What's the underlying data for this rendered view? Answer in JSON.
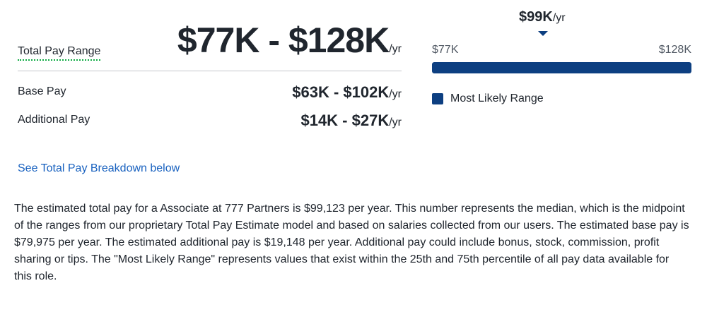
{
  "total_pay": {
    "label": "Total Pay Range",
    "value": "$77K - $128K",
    "unit": "/yr"
  },
  "base_pay": {
    "label": "Base Pay",
    "value": "$63K - $102K",
    "unit": "/yr"
  },
  "additional_pay": {
    "label": "Additional Pay",
    "value": "$14K - $27K",
    "unit": "/yr"
  },
  "breakdown_link": "See Total Pay Breakdown below",
  "range_chart": {
    "median_value": "$99K",
    "median_unit": "/yr",
    "min_label": "$77K",
    "max_label": "$128K",
    "fill_fraction": 1.0,
    "legend_label": "Most Likely Range",
    "bar_color": "#0d3f81"
  },
  "description": "The estimated total pay for a Associate at 777 Partners is $99,123 per year. This number represents the median, which is the midpoint of the ranges from our proprietary Total Pay Estimate model and based on salaries collected from our users. The estimated base pay is $79,975 per year. The estimated additional pay is $19,148 per year. Additional pay could include bonus, stock, commission, profit sharing or tips. The \"Most Likely Range\" represents values that exist within the 25th and 75th percentile of all pay data available for this role."
}
